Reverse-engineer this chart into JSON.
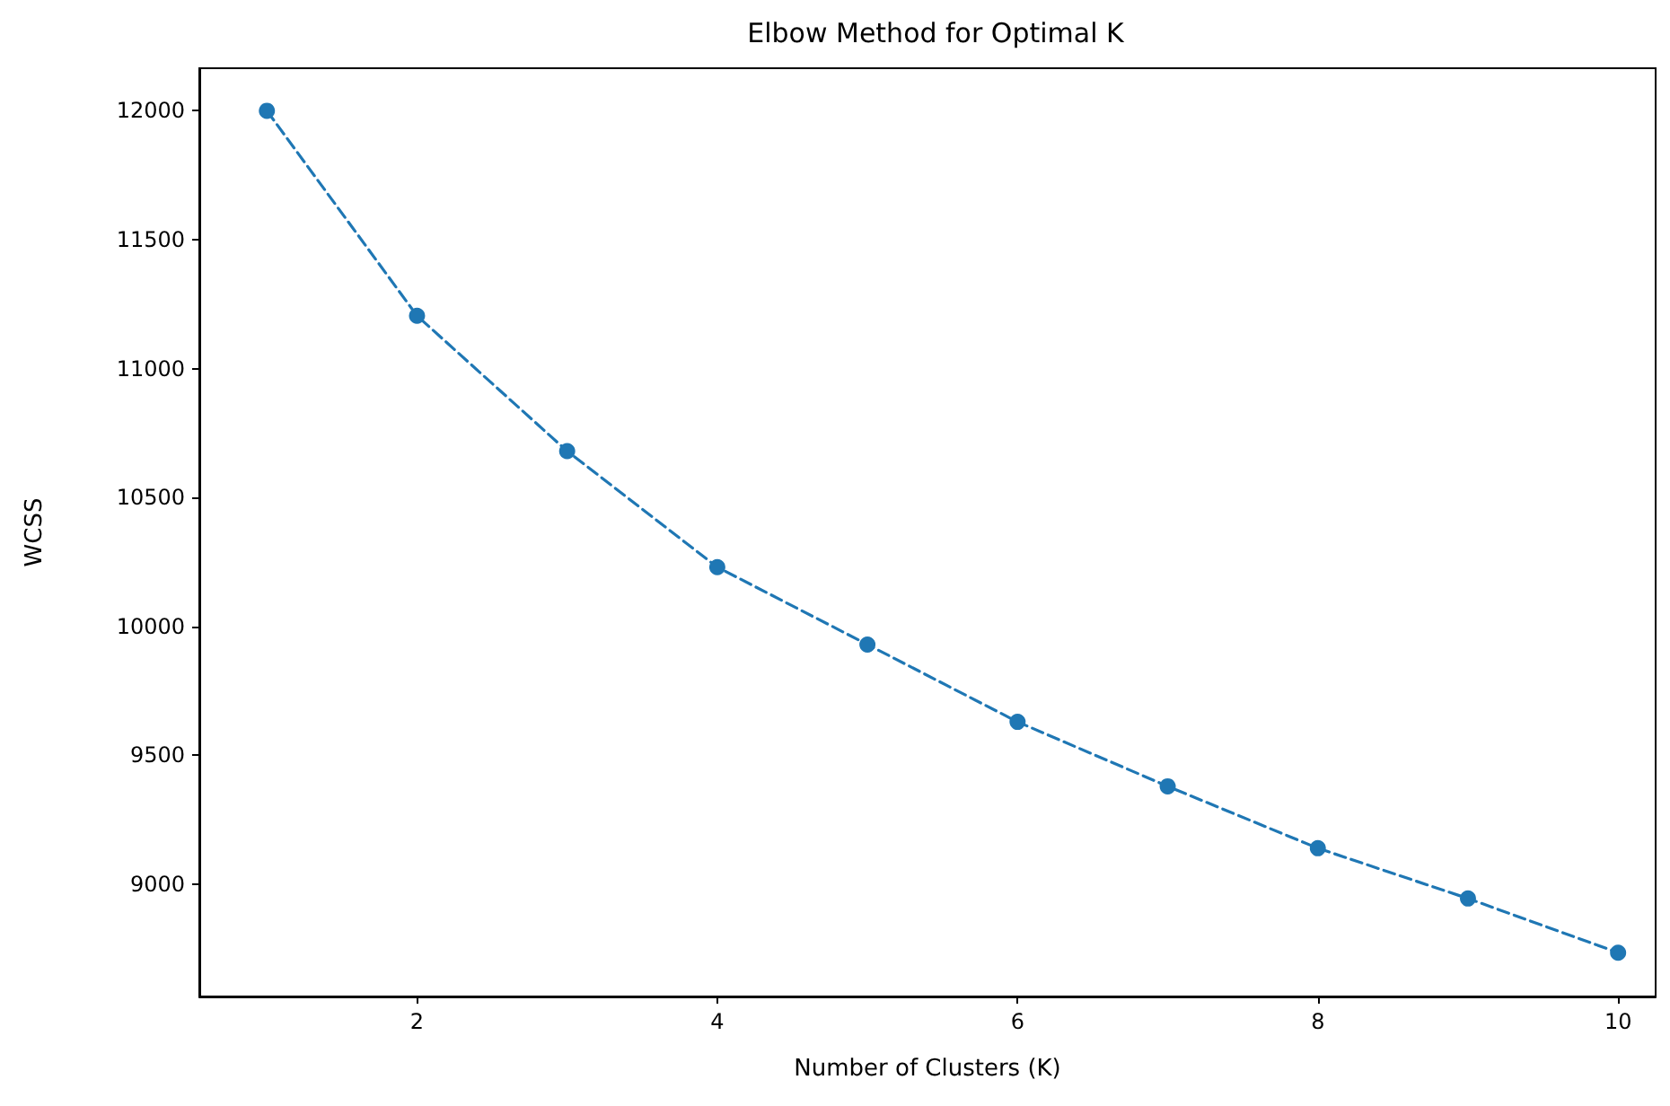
{
  "chart_data": {
    "type": "line",
    "title": "Elbow Method for Optimal K",
    "xlabel": "Number of Clusters (K)",
    "ylabel": "WCSS",
    "x": [
      1,
      2,
      3,
      4,
      5,
      6,
      7,
      8,
      9,
      10
    ],
    "series": [
      {
        "color": "#1f77b4",
        "values": [
          12000,
          11205,
          10680,
          10230,
          9930,
          9630,
          9380,
          9140,
          8945,
          8735
        ]
      }
    ],
    "xlim": [
      0.55,
      10.25
    ],
    "xticks": [
      2,
      4,
      6,
      8,
      10
    ],
    "ylim": [
      8565,
      12165
    ],
    "yticks": [
      9000,
      9500,
      10000,
      10500,
      11000,
      11500,
      12000
    ],
    "grid": false,
    "marker": "circle",
    "line_style": "dashed"
  }
}
